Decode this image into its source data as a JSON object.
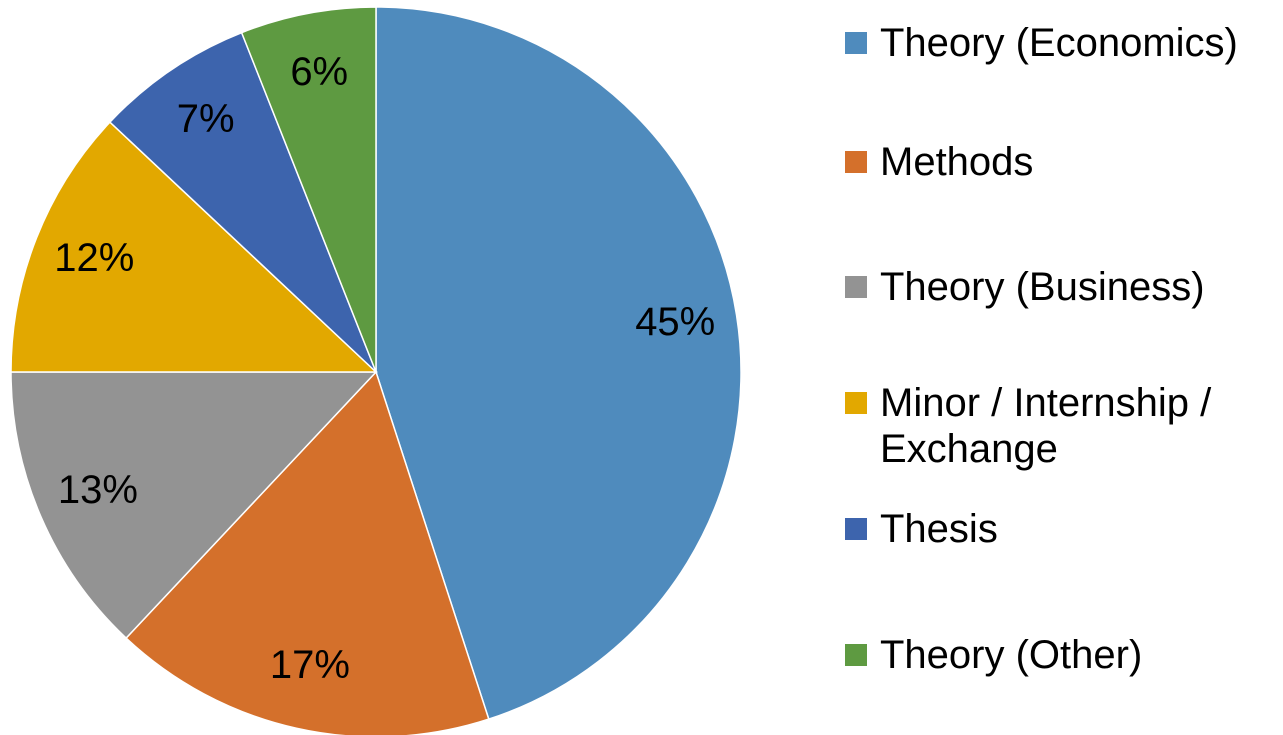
{
  "chart_data": {
    "type": "pie",
    "categories": [
      "Theory (Economics)",
      "Methods",
      "Theory (Business)",
      "Minor / Internship / Exchange",
      "Thesis",
      "Theory (Other)"
    ],
    "values": [
      45,
      17,
      13,
      12,
      7,
      6
    ],
    "value_labels": [
      "45%",
      "17%",
      "13%",
      "12%",
      "7%",
      "6%"
    ],
    "colors": [
      "#4f8bbd",
      "#d4702b",
      "#939393",
      "#e2a800",
      "#3d64ad",
      "#5e9a41"
    ],
    "legend": "right"
  }
}
